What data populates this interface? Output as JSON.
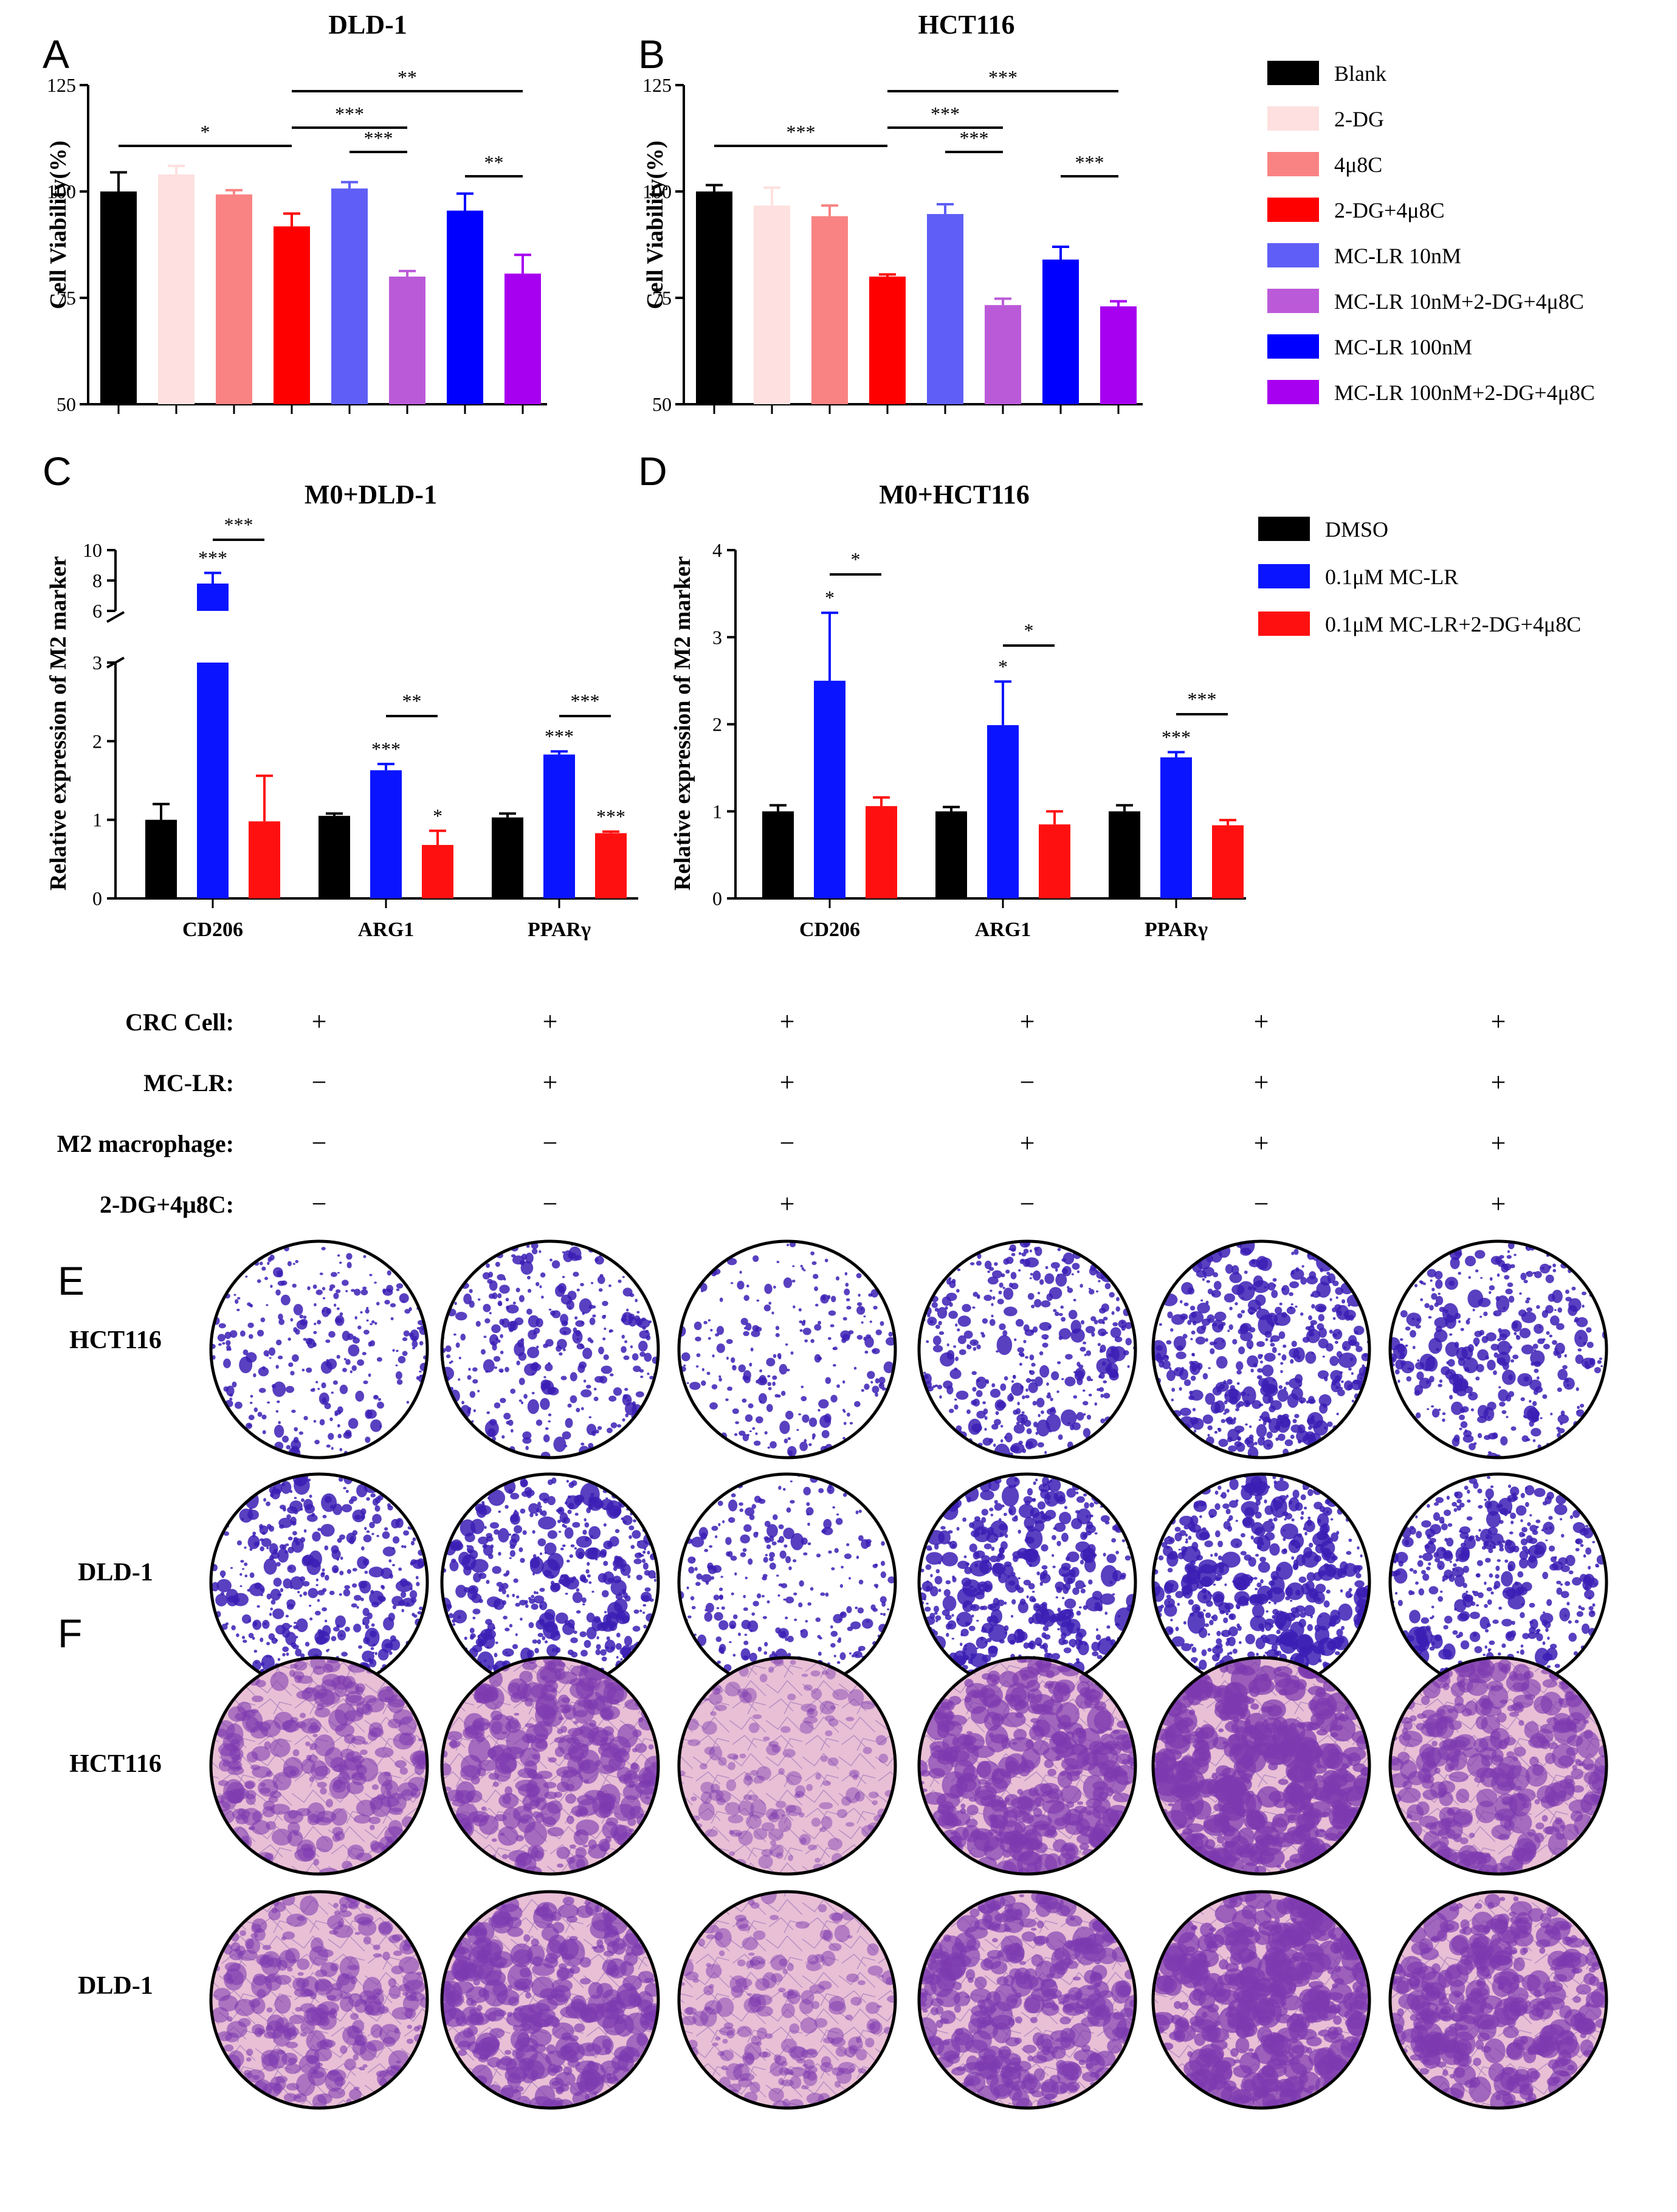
{
  "panels": {
    "A": "A",
    "B": "B",
    "C": "C",
    "D": "D",
    "E": "E",
    "F": "F"
  },
  "colors": {
    "Blank": "#000000",
    "2-DG": "#fde0df",
    "4u8C": "#f98383",
    "2-DG+4u8C": "#fe0000",
    "MC-LR 10nM": "#5f5ff7",
    "MC-LR 10nM+2-DG+4u8C": "#bb5ad8",
    "MC-LR 100nM": "#0000ff",
    "MC-LR 100nM+2-DG+4u8C": "#a700f0",
    "DMSO": "#000000",
    "0.1uM MC-LR": "#0a14ff",
    "0.1uM MC-LR+2-DG+4u8C": "#ff1010",
    "crystal_violet": "#3b1fb5",
    "transwell_bg": "#eec3da",
    "transwell_stain": "#7d3ab0"
  },
  "chart_data": [
    {
      "id": "A",
      "type": "bar",
      "title": "DLD-1",
      "ylabel": "Cell Viability(%)",
      "xlabel": "",
      "ylim": [
        50,
        125
      ],
      "yticks": [
        "50",
        "75",
        "100",
        "125"
      ],
      "categories": [
        "Blank",
        "2-DG",
        "4μ8C",
        "2-DG+4μ8C",
        "MC-LR 10nM",
        "MC-LR 10nM+2-DG+4μ8C",
        "MC-LR 100nM",
        "MC-LR 100nM+2-DG+4μ8C"
      ],
      "values": [
        100,
        104,
        99.3,
        91.8,
        100.7,
        80,
        95.5,
        80.7
      ],
      "errors": [
        4.5,
        2,
        1,
        3,
        1.5,
        1.3,
        4,
        4.4
      ],
      "significance": [
        {
          "from": 0,
          "to": 3,
          "label": "*"
        },
        {
          "from": 3,
          "to": 5,
          "label": "***"
        },
        {
          "from": 3,
          "to": 7,
          "label": "**"
        },
        {
          "from": 4,
          "to": 5,
          "label": "***"
        },
        {
          "from": 6,
          "to": 7,
          "label": "**"
        }
      ]
    },
    {
      "id": "B",
      "type": "bar",
      "title": "HCT116",
      "ylabel": "Cell Viability(%)",
      "xlabel": "",
      "ylim": [
        50,
        125
      ],
      "yticks": [
        "50",
        "75",
        "100",
        "125"
      ],
      "categories": [
        "Blank",
        "2-DG",
        "4μ8C",
        "2-DG+4μ8C",
        "MC-LR 10nM",
        "MC-LR 10nM+2-DG+4μ8C",
        "MC-LR 100nM",
        "MC-LR 100nM+2-DG+4μ8C"
      ],
      "values": [
        100,
        96.7,
        94.2,
        80,
        94.7,
        73.3,
        84,
        73
      ],
      "errors": [
        1.5,
        4.2,
        2.5,
        0.5,
        2.3,
        1.5,
        3,
        1.2
      ],
      "significance": [
        {
          "from": 0,
          "to": 3,
          "label": "***"
        },
        {
          "from": 3,
          "to": 5,
          "label": "***"
        },
        {
          "from": 3,
          "to": 7,
          "label": "***"
        },
        {
          "from": 4,
          "to": 5,
          "label": "***"
        },
        {
          "from": 6,
          "to": 7,
          "label": "***"
        }
      ]
    },
    {
      "id": "C",
      "type": "bar",
      "title": "M0+DLD-1",
      "ylabel": "Relative expression of M2 marker",
      "xlabel": "",
      "categories": [
        "CD206",
        "ARG1",
        "PPARγ"
      ],
      "ylim_lower": [
        0,
        3
      ],
      "ylim_upper": [
        6,
        10
      ],
      "yticks": [
        "0",
        "1",
        "2",
        "3",
        "6",
        "8",
        "10"
      ],
      "series": [
        {
          "name": "DMSO",
          "values": [
            1.0,
            1.05,
            1.03
          ],
          "errors": [
            0.2,
            0.03,
            0.05
          ],
          "marks": [
            "",
            "",
            ""
          ]
        },
        {
          "name": "0.1μM MC-LR",
          "values": [
            7.8,
            1.63,
            1.83
          ],
          "errors": [
            0.7,
            0.08,
            0.04
          ],
          "marks": [
            "***",
            "***",
            "***"
          ]
        },
        {
          "name": "0.1μM MC-LR+2-DG+4μ8C",
          "values": [
            0.98,
            0.68,
            0.83
          ],
          "errors": [
            0.58,
            0.18,
            0.02
          ],
          "marks": [
            "",
            "*",
            "***"
          ]
        }
      ],
      "significance": [
        {
          "category": 0,
          "label": "***"
        },
        {
          "category": 1,
          "label": "**"
        },
        {
          "category": 2,
          "label": "***"
        }
      ]
    },
    {
      "id": "D",
      "type": "bar",
      "title": "M0+HCT116",
      "ylabel": "Relative expression of M2 marker",
      "xlabel": "",
      "categories": [
        "CD206",
        "ARG1",
        "PPARγ"
      ],
      "ylim": [
        0,
        4
      ],
      "yticks": [
        "0",
        "1",
        "2",
        "3",
        "4"
      ],
      "series": [
        {
          "name": "DMSO",
          "values": [
            1.0,
            1.0,
            1.0
          ],
          "errors": [
            0.07,
            0.05,
            0.07
          ],
          "marks": [
            "",
            "",
            ""
          ]
        },
        {
          "name": "0.1μM MC-LR",
          "values": [
            2.5,
            1.99,
            1.62
          ],
          "errors": [
            0.78,
            0.5,
            0.06
          ],
          "marks": [
            "*",
            "*",
            "***"
          ]
        },
        {
          "name": "0.1μM MC-LR+2-DG+4μ8C",
          "values": [
            1.06,
            0.85,
            0.84
          ],
          "errors": [
            0.1,
            0.15,
            0.06
          ],
          "marks": [
            "",
            "",
            ""
          ]
        }
      ],
      "significance": [
        {
          "category": 0,
          "label": "*"
        },
        {
          "category": 1,
          "label": "*"
        },
        {
          "category": 2,
          "label": "***"
        }
      ]
    }
  ],
  "legend_ab": [
    "Blank",
    "2-DG",
    "4μ8C",
    "2-DG+4μ8C",
    "MC-LR 10nM",
    "MC-LR 10nM+2-DG+4μ8C",
    "MC-LR 100nM",
    "MC-LR 100nM+2-DG+4μ8C"
  ],
  "legend_cd": [
    "DMSO",
    "0.1μM MC-LR",
    "0.1μM MC-LR+2-DG+4μ8C"
  ],
  "conditions": {
    "rows": [
      {
        "label": "CRC Cell:",
        "marks": [
          "+",
          "+",
          "+",
          "+",
          "+",
          "+"
        ]
      },
      {
        "label": "MC-LR:",
        "marks": [
          "−",
          "+",
          "+",
          "−",
          "+",
          "+"
        ]
      },
      {
        "label": "M2 macrophage:",
        "marks": [
          "−",
          "−",
          "−",
          "+",
          "+",
          "+"
        ]
      },
      {
        "label": "2-DG+4μ8C:",
        "marks": [
          "−",
          "−",
          "+",
          "−",
          "−",
          "+"
        ]
      }
    ]
  },
  "colony_rows": {
    "E": [
      {
        "label": "HCT116",
        "density": [
          0.45,
          0.55,
          0.35,
          0.7,
          0.85,
          0.65
        ]
      },
      {
        "label": "DLD-1",
        "density": [
          0.75,
          0.9,
          0.45,
          0.95,
          1.0,
          0.8
        ]
      }
    ],
    "F": [
      {
        "label": "HCT116",
        "density": [
          0.55,
          0.7,
          0.25,
          0.8,
          0.95,
          0.7
        ]
      },
      {
        "label": "DLD-1",
        "density": [
          0.55,
          0.75,
          0.35,
          0.75,
          0.9,
          0.8
        ]
      }
    ]
  }
}
